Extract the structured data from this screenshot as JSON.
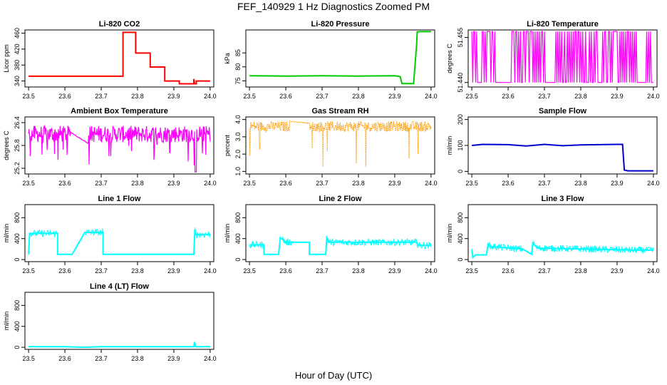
{
  "figure": {
    "title": "FEF_140929  1 Hz Diagnostics Zoomed PM",
    "xlabel": "Hour of Day (UTC)"
  },
  "chart_data": [
    {
      "id": "co2",
      "type": "line",
      "title": "Li-820 CO2",
      "ylabel": "Licor ppm",
      "color": "#ff0000",
      "xlim": [
        23.49,
        24.01
      ],
      "ylim": [
        325,
        468
      ],
      "xticks": [
        "23.5",
        "23.6",
        "23.7",
        "23.8",
        "23.9",
        "24.0"
      ],
      "yticks": [
        {
          "v": 340,
          "label": "340"
        },
        {
          "v": 380,
          "label": "380"
        },
        {
          "v": 420,
          "label": "420"
        },
        {
          "v": 460,
          "label": "460"
        }
      ],
      "x": [
        23.5,
        23.76,
        23.76,
        23.795,
        23.795,
        23.835,
        23.835,
        23.875,
        23.875,
        23.915,
        23.915,
        23.955,
        23.955,
        23.957,
        23.962,
        23.962,
        24.0
      ],
      "y": [
        352,
        352,
        462,
        462,
        410,
        410,
        375,
        375,
        340,
        340,
        333,
        333,
        345,
        333,
        333,
        340,
        340
      ]
    },
    {
      "id": "pressure",
      "type": "line",
      "title": "Li-820 Pressure",
      "ylabel": "kPa",
      "color": "#00cc00",
      "xlim": [
        23.49,
        24.01
      ],
      "ylim": [
        72.8,
        93.2
      ],
      "xticks": [
        "23.5",
        "23.6",
        "23.7",
        "23.8",
        "23.9",
        "24.0"
      ],
      "yticks": [
        {
          "v": 75,
          "label": "75"
        },
        {
          "v": 80,
          "label": "80"
        },
        {
          "v": 85,
          "label": "85"
        }
      ],
      "x": [
        23.5,
        23.6,
        23.7,
        23.8,
        23.9,
        23.915,
        23.92,
        23.952,
        23.96,
        23.962,
        23.97,
        24.0
      ],
      "y": [
        76.8,
        76.7,
        76.8,
        76.7,
        76.8,
        76.5,
        74.0,
        74.0,
        87.5,
        92.5,
        92.6,
        92.6
      ]
    },
    {
      "id": "licor_temp",
      "type": "line",
      "title": "Li-820 Temperature",
      "ylabel": "degrees C",
      "color": "#ff00ff",
      "xlim": [
        23.49,
        24.01
      ],
      "ylim": [
        51.4385,
        51.4575
      ],
      "xticks": [
        "23.5",
        "23.6",
        "23.7",
        "23.8",
        "23.9",
        "24.0"
      ],
      "yticks": [
        {
          "v": 51.44,
          "label": "51.440"
        },
        {
          "v": 51.455,
          "label": "51.455"
        }
      ],
      "levels": [
        51.44,
        51.457
      ],
      "pattern": "toggling"
    },
    {
      "id": "box_temp",
      "type": "line",
      "title": "Ambient Box Temperature",
      "ylabel": "degrees C",
      "color": "#ff00ff",
      "xlim": [
        23.49,
        24.01
      ],
      "ylim": [
        25.05,
        26.55
      ],
      "xticks": [
        "23.5",
        "23.6",
        "23.7",
        "23.8",
        "23.9",
        "24.0"
      ],
      "yticks": [
        {
          "v": 25.2,
          "label": "25.2"
        },
        {
          "v": 25.8,
          "label": "25.8"
        },
        {
          "v": 26.4,
          "label": "26.4"
        }
      ],
      "pattern": "noise",
      "center": 26.1,
      "amplitude": 0.22
    },
    {
      "id": "rh",
      "type": "line",
      "title": "Gas Stream RH",
      "ylabel": "percent",
      "color": "#ff9900",
      "xlim": [
        23.49,
        24.01
      ],
      "ylim": [
        0.85,
        4.15
      ],
      "xticks": [
        "23.5",
        "23.6",
        "23.7",
        "23.8",
        "23.9",
        "24.0"
      ],
      "yticks": [
        {
          "v": 1.0,
          "label": "1.0"
        },
        {
          "v": 2.0,
          "label": "2.0"
        },
        {
          "v": 3.0,
          "label": "3.0"
        },
        {
          "v": 4.0,
          "label": "4.0"
        }
      ],
      "pattern": "noise",
      "center": 3.6,
      "amplitude": 0.3
    },
    {
      "id": "sample_flow",
      "type": "line",
      "title": "Sample Flow",
      "ylabel": "ml/min",
      "color": "#0000cc",
      "xlim": [
        23.49,
        24.01
      ],
      "ylim": [
        -10,
        210
      ],
      "xticks": [
        "23.5",
        "23.6",
        "23.7",
        "23.8",
        "23.9",
        "24.0"
      ],
      "yticks": [
        {
          "v": 0,
          "label": "0"
        },
        {
          "v": 100,
          "label": "100"
        },
        {
          "v": 200,
          "label": "200"
        }
      ],
      "x": [
        23.5,
        23.53,
        23.6,
        23.65,
        23.7,
        23.75,
        23.8,
        23.85,
        23.9,
        23.915,
        23.92,
        23.93,
        24.0
      ],
      "y": [
        100,
        104,
        103,
        98,
        104,
        99,
        102,
        103,
        104,
        104,
        5,
        2,
        2
      ]
    },
    {
      "id": "line1",
      "type": "line",
      "title": "Line 1 Flow",
      "ylabel": "ml/min",
      "color": "#00ffff",
      "xlim": [
        23.49,
        24.01
      ],
      "ylim": [
        -40,
        1050
      ],
      "xticks": [
        "23.5",
        "23.6",
        "23.7",
        "23.8",
        "23.9",
        "24.0"
      ],
      "yticks": [
        {
          "v": 0,
          "label": "0"
        },
        {
          "v": 400,
          "label": "400"
        },
        {
          "v": 800,
          "label": "800"
        }
      ],
      "x": [
        23.5,
        23.503,
        23.58,
        23.58,
        23.62,
        23.655,
        23.705,
        23.705,
        23.955,
        23.958,
        23.96,
        24.0
      ],
      "y": [
        100,
        500,
        500,
        100,
        100,
        520,
        520,
        100,
        100,
        580,
        480,
        480
      ],
      "band": [
        [
          23.5,
          23.58
        ],
        [
          23.655,
          23.705
        ],
        [
          23.958,
          24.0
        ]
      ]
    },
    {
      "id": "line2",
      "type": "line",
      "title": "Line 2 Flow",
      "ylabel": "ml/min",
      "color": "#00ffff",
      "xlim": [
        23.49,
        24.01
      ],
      "ylim": [
        -40,
        1050
      ],
      "xticks": [
        "23.5",
        "23.6",
        "23.7",
        "23.8",
        "23.9",
        "24.0"
      ],
      "yticks": [
        {
          "v": 0,
          "label": "0"
        },
        {
          "v": 400,
          "label": "400"
        },
        {
          "v": 800,
          "label": "800"
        }
      ],
      "x": [
        23.5,
        23.54,
        23.54,
        23.58,
        23.585,
        23.6,
        23.63,
        23.665,
        23.665,
        23.71,
        23.713,
        23.72,
        23.96,
        23.965,
        24.0
      ],
      "y": [
        280,
        280,
        100,
        100,
        420,
        330,
        330,
        330,
        100,
        100,
        420,
        330,
        330,
        270,
        270
      ],
      "band": [
        [
          23.5,
          23.54
        ],
        [
          23.59,
          23.62
        ],
        [
          23.715,
          24.0
        ]
      ]
    },
    {
      "id": "line3",
      "type": "line",
      "title": "Line 3 Flow",
      "ylabel": "ml/min",
      "color": "#00ffff",
      "xlim": [
        23.49,
        24.01
      ],
      "ylim": [
        -40,
        1050
      ],
      "xticks": [
        "23.5",
        "23.6",
        "23.7",
        "23.8",
        "23.9",
        "24.0"
      ],
      "yticks": [
        {
          "v": 0,
          "label": "0"
        },
        {
          "v": 400,
          "label": "400"
        },
        {
          "v": 800,
          "label": "800"
        }
      ],
      "x": [
        23.5,
        23.503,
        23.51,
        23.54,
        23.545,
        23.55,
        23.64,
        23.665,
        23.668,
        23.68,
        23.96,
        24.0
      ],
      "y": [
        200,
        40,
        90,
        90,
        300,
        250,
        200,
        100,
        320,
        220,
        180,
        180
      ],
      "band": [
        [
          23.545,
          23.64
        ],
        [
          23.668,
          24.0
        ]
      ]
    },
    {
      "id": "line4",
      "type": "line",
      "title": "Line 4 (LT) Flow",
      "ylabel": "ml/min",
      "color": "#00ffff",
      "xlim": [
        23.49,
        24.01
      ],
      "ylim": [
        -40,
        1050
      ],
      "xticks": [
        "23.5",
        "23.6",
        "23.7",
        "23.8",
        "23.9",
        "24.0"
      ],
      "yticks": [
        {
          "v": 0,
          "label": "0"
        },
        {
          "v": 400,
          "label": "400"
        },
        {
          "v": 800,
          "label": "800"
        }
      ],
      "x": [
        23.5,
        23.6,
        23.65,
        23.7,
        23.955,
        23.957,
        23.96,
        24.0
      ],
      "y": [
        10,
        10,
        0,
        10,
        10,
        100,
        10,
        10
      ]
    }
  ]
}
